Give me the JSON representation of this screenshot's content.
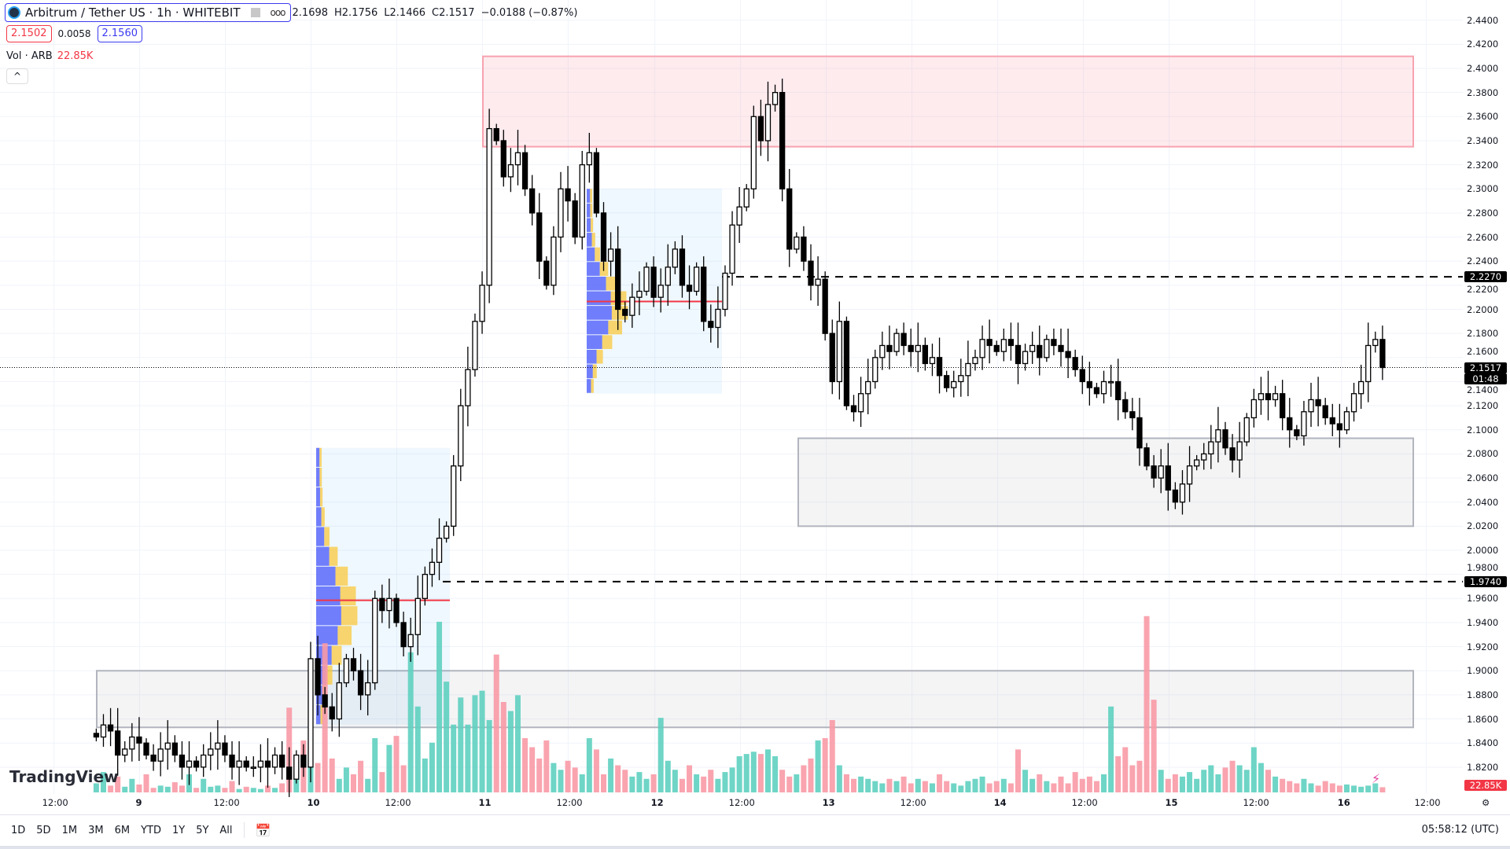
{
  "header": {
    "title": "Arbitrum / Tether US · 1h · WHITEBIT",
    "more": "ooo",
    "ohlc": {
      "o": "2.1698",
      "h": "H2.1756",
      "l": "L2.1466",
      "c": "C2.1517",
      "change": "−0.0188 (−0.87%)"
    },
    "bid": "2.1502",
    "spread": "0.0058",
    "ask": "2.1560"
  },
  "volume_legend": {
    "label": "Vol · ARB",
    "value": "22.85K"
  },
  "watermark": "TradingView",
  "colors": {
    "bull_vol": "#5fd0c0",
    "bear_vol": "#f89aa6",
    "supply_zone": "#f7a3b0",
    "demand_zone": "#b2b5be",
    "accent": "#f23645"
  },
  "chart_data": {
    "type": "candlestick",
    "symbol": "ARBUSDT",
    "interval": "1h",
    "ylim": [
      1.81,
      2.45
    ],
    "price_ticks": [
      "2.4400",
      "2.4200",
      "2.4000",
      "2.3800",
      "2.3600",
      "2.3400",
      "2.3200",
      "2.3000",
      "2.2800",
      "2.2600",
      "2.2400",
      "2.2200",
      "2.2000",
      "2.1800",
      "2.1600",
      "2.1400",
      "2.1200",
      "2.1000",
      "2.0800",
      "2.0600",
      "2.0400",
      "2.0200",
      "2.0000",
      "1.9800",
      "1.9600",
      "1.9400",
      "1.9200",
      "1.9000",
      "1.8800",
      "1.8600",
      "1.8400",
      "1.8200"
    ],
    "time_ticks": [
      "12:00",
      "9",
      "12:00",
      "10",
      "12:00",
      "11",
      "12:00",
      "12",
      "12:00",
      "13",
      "12:00",
      "14",
      "12:00",
      "15",
      "12:00",
      "16",
      "12:00"
    ],
    "closes": [
      1.845,
      1.855,
      1.85,
      1.83,
      1.835,
      1.845,
      1.84,
      1.83,
      1.825,
      1.835,
      1.84,
      1.83,
      1.82,
      1.825,
      1.82,
      1.83,
      1.835,
      1.84,
      1.83,
      1.82,
      1.825,
      1.82,
      1.82,
      1.825,
      1.82,
      1.83,
      1.82,
      1.81,
      1.83,
      1.82,
      1.91,
      1.88,
      1.87,
      1.86,
      1.89,
      1.91,
      1.9,
      1.88,
      1.89,
      1.96,
      1.95,
      1.96,
      1.94,
      1.92,
      1.93,
      1.96,
      1.98,
      1.99,
      2.01,
      2.02,
      2.07,
      2.12,
      2.15,
      2.19,
      2.22,
      2.35,
      2.34,
      2.31,
      2.32,
      2.33,
      2.3,
      2.28,
      2.24,
      2.22,
      2.26,
      2.3,
      2.29,
      2.26,
      2.32,
      2.33,
      2.28,
      2.24,
      2.25,
      2.2,
      2.195,
      2.21,
      2.215,
      2.235,
      2.21,
      2.22,
      2.235,
      2.25,
      2.22,
      2.215,
      2.235,
      2.19,
      2.185,
      2.2,
      2.23,
      2.27,
      2.285,
      2.3,
      2.36,
      2.34,
      2.37,
      2.38,
      2.3,
      2.25,
      2.26,
      2.24,
      2.22,
      2.225,
      2.18,
      2.14,
      2.19,
      2.12,
      2.115,
      2.13,
      2.14,
      2.16,
      2.17,
      2.165,
      2.18,
      2.17,
      2.165,
      2.17,
      2.155,
      2.16,
      2.145,
      2.135,
      2.14,
      2.145,
      2.155,
      2.16,
      2.175,
      2.17,
      2.165,
      2.175,
      2.17,
      2.155,
      2.165,
      2.17,
      2.16,
      2.175,
      2.17,
      2.165,
      2.16,
      2.15,
      2.14,
      2.135,
      2.13,
      2.14,
      2.14,
      2.125,
      2.115,
      2.11,
      2.085,
      2.07,
      2.06,
      2.07,
      2.05,
      2.04,
      2.055,
      2.07,
      2.075,
      2.08,
      2.09,
      2.1,
      2.085,
      2.075,
      2.09,
      2.11,
      2.125,
      2.13,
      2.125,
      2.13,
      2.11,
      2.1,
      2.095,
      2.115,
      2.125,
      2.12,
      2.11,
      2.105,
      2.1,
      2.115,
      2.13,
      2.14,
      2.17,
      2.175,
      2.1517
    ],
    "volumes_k": [
      40,
      90,
      30,
      70,
      25,
      60,
      35,
      80,
      20,
      30,
      25,
      45,
      30,
      80,
      20,
      60,
      25,
      30,
      20,
      50,
      15,
      25,
      20,
      15,
      30,
      20,
      40,
      375,
      90,
      230,
      225,
      130,
      660,
      150,
      60,
      110,
      80,
      140,
      60,
      240,
      90,
      210,
      250,
      120,
      620,
      380,
      150,
      220,
      755,
      490,
      300,
      420,
      300,
      430,
      450,
      320,
      610,
      400,
      360,
      430,
      240,
      200,
      150,
      230,
      130,
      100,
      140,
      110,
      80,
      240,
      190,
      80,
      150,
      120,
      100,
      70,
      90,
      60,
      80,
      330,
      140,
      100,
      60,
      120,
      80,
      70,
      100,
      60,
      90,
      110,
      160,
      170,
      180,
      170,
      190,
      160,
      100,
      70,
      80,
      120,
      150,
      230,
      240,
      320,
      120,
      80,
      60,
      70,
      60,
      50,
      40,
      60,
      50,
      70,
      40,
      60,
      50,
      40,
      80,
      50,
      40,
      30,
      50,
      60,
      70,
      40,
      50,
      60,
      40,
      190,
      100,
      60,
      80,
      50,
      40,
      70,
      40,
      90,
      60,
      70,
      50,
      80,
      380,
      160,
      200,
      120,
      140,
      780,
      410,
      100,
      60,
      80,
      70,
      90,
      60,
      100,
      120,
      80,
      110,
      140,
      120,
      100,
      200,
      130,
      100,
      70,
      60,
      50,
      40,
      60,
      40,
      30,
      50,
      40,
      30,
      35,
      30,
      25,
      30,
      40,
      22.85
    ],
    "zones": [
      {
        "kind": "supply",
        "from_price": 2.335,
        "to_price": 2.41
      },
      {
        "kind": "demand",
        "from_price": 2.02,
        "to_price": 2.093
      },
      {
        "kind": "demand",
        "from_price": 1.853,
        "to_price": 1.9
      }
    ],
    "levels": [
      {
        "price": "2.2270",
        "style": "dashed"
      },
      {
        "price": "1.9740",
        "style": "dashed"
      }
    ],
    "last_price": "2.1517",
    "countdown": "01:48",
    "last_volume": "22.85K"
  },
  "toolbar": {
    "ranges": [
      "1D",
      "5D",
      "1M",
      "3M",
      "6M",
      "YTD",
      "1Y",
      "5Y",
      "All"
    ],
    "clock": "05:58:12 (UTC)"
  }
}
